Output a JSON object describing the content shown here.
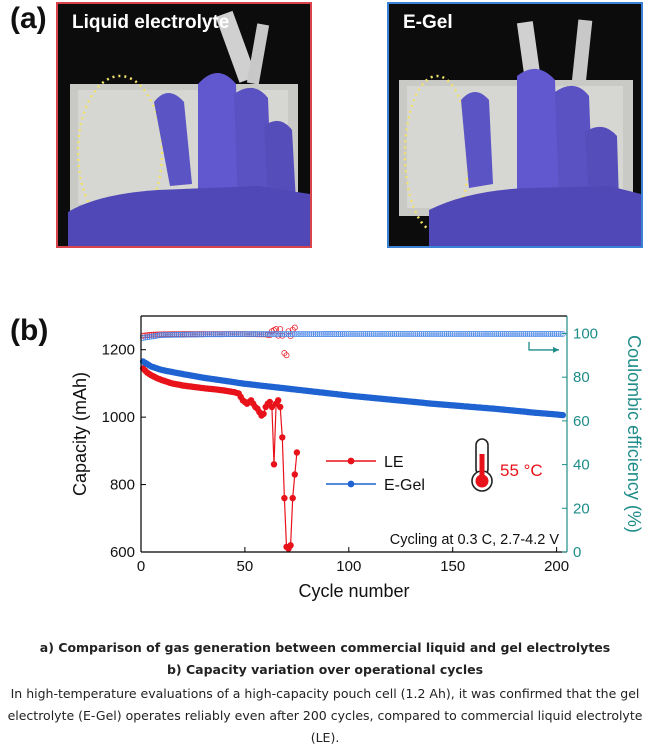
{
  "panel_a": {
    "label": "(a)",
    "photos": [
      {
        "label": "Liquid electrolyte",
        "border_color": "#d9434b"
      },
      {
        "label": "E-Gel",
        "border_color": "#3b82d6"
      }
    ]
  },
  "panel_b": {
    "label": "(b)"
  },
  "chart_data": {
    "type": "scatter",
    "xlabel": "Cycle number",
    "ylabel": "Capacity (mAh)",
    "y2label": "Coulombic efficiency (%)",
    "xlim": [
      0,
      205
    ],
    "ylim": [
      600,
      1300
    ],
    "y2lim": [
      0,
      108
    ],
    "xticks": [
      0,
      50,
      100,
      150,
      200
    ],
    "yticks": [
      600,
      800,
      1000,
      1200
    ],
    "y2ticks": [
      0,
      20,
      40,
      60,
      80,
      100
    ],
    "annotation": "Cycling at 0.3 C, 2.7-4.2 V",
    "temperature_label": "55 °C",
    "legend_position": "center",
    "series": [
      {
        "name": "LE",
        "color": "#e8121b",
        "quantity": "capacity",
        "x": [
          1,
          2,
          3,
          5,
          8,
          10,
          15,
          20,
          25,
          30,
          35,
          40,
          42,
          45,
          47,
          48,
          49,
          50,
          51,
          52,
          53,
          54,
          55,
          56,
          57,
          58,
          59,
          60,
          61,
          62,
          63,
          64,
          65,
          66,
          67,
          68,
          69,
          70,
          71,
          72,
          73,
          74,
          75
        ],
        "y": [
          1145,
          1138,
          1132,
          1124,
          1115,
          1110,
          1100,
          1094,
          1090,
          1086,
          1083,
          1079,
          1077,
          1074,
          1070,
          1060,
          1050,
          1045,
          1040,
          1045,
          1050,
          1040,
          1030,
          1025,
          1015,
          1005,
          1010,
          1030,
          1040,
          1045,
          1030,
          860,
          1040,
          1050,
          1030,
          940,
          760,
          615,
          610,
          620,
          760,
          830,
          895
        ]
      },
      {
        "name": "E-Gel",
        "color": "#1f63d2",
        "quantity": "capacity",
        "x": [
          1,
          5,
          10,
          20,
          30,
          40,
          50,
          60,
          70,
          80,
          90,
          100,
          110,
          120,
          130,
          140,
          150,
          160,
          170,
          180,
          190,
          200,
          203
        ],
        "y": [
          1165,
          1150,
          1140,
          1128,
          1117,
          1108,
          1099,
          1092,
          1085,
          1078,
          1071,
          1064,
          1058,
          1052,
          1046,
          1040,
          1035,
          1030,
          1025,
          1019,
          1013,
          1008,
          1006
        ]
      },
      {
        "name": "LE",
        "color": "#e8121b",
        "quantity": "coulombic_efficiency",
        "style": "open",
        "x": [
          1,
          5,
          10,
          20,
          30,
          40,
          50,
          60,
          62,
          63,
          64,
          65,
          66,
          67,
          68,
          69,
          70,
          71,
          72,
          73,
          74
        ],
        "y": [
          99,
          99.4,
          99.6,
          99.7,
          99.7,
          99.7,
          99.7,
          99.6,
          99.2,
          101,
          101.5,
          102,
          99,
          102,
          99,
          91,
          90,
          101,
          98.8,
          101.7,
          102.7
        ]
      },
      {
        "name": "E-Gel",
        "color": "#4a86e6",
        "quantity": "coulombic_efficiency",
        "style": "open",
        "x": [
          1,
          10,
          30,
          50,
          80,
          100,
          130,
          160,
          190,
          203
        ],
        "y": [
          98,
          99.3,
          99.6,
          99.7,
          99.7,
          99.8,
          99.8,
          99.8,
          99.8,
          99.8
        ]
      }
    ]
  },
  "captions": {
    "line1": "a) Comparison of gas generation between commercial liquid and gel electrolytes",
    "line2": "b) Capacity variation over operational cycles",
    "body1": "In high-temperature evaluations of a high-capacity pouch cell (1.2 Ah), it was confirmed that the gel",
    "body2": "electrolyte (E-Gel) operates reliably even after 200 cycles, compared to commercial liquid electrolyte",
    "body3": "(LE)."
  }
}
